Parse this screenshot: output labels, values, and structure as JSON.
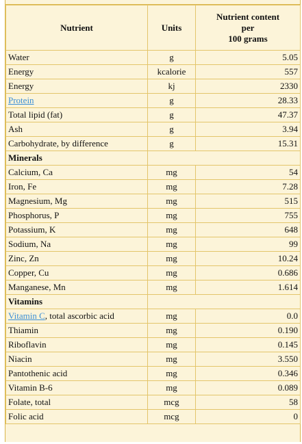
{
  "table": {
    "header": [
      "Nutrient",
      "Units",
      [
        "Nutrient content",
        "per",
        "100 grams"
      ]
    ],
    "rows": [
      {
        "nutrient": "Water",
        "units": "g",
        "value": "5.05"
      },
      {
        "nutrient": "Energy",
        "units": "kcalorie",
        "value": "557"
      },
      {
        "nutrient": "Energy",
        "units": "kj",
        "value": "2330"
      },
      {
        "link": "Protein",
        "units": "g",
        "value": "28.33"
      },
      {
        "nutrient": "Total lipid (fat)",
        "units": "g",
        "value": "47.37"
      },
      {
        "nutrient": "Ash",
        "units": "g",
        "value": "3.94"
      },
      {
        "nutrient": "Carbohydrate, by difference",
        "units": "g",
        "value": "15.31"
      },
      {
        "section": "Minerals"
      },
      {
        "nutrient": "Calcium, Ca",
        "units": "mg",
        "value": "54"
      },
      {
        "nutrient": "Iron, Fe",
        "units": "mg",
        "value": "7.28"
      },
      {
        "nutrient": "Magnesium, Mg",
        "units": "mg",
        "value": "515"
      },
      {
        "nutrient": "Phosphorus, P",
        "units": "mg",
        "value": "755"
      },
      {
        "nutrient": "Potassium, K",
        "units": "mg",
        "value": "648"
      },
      {
        "nutrient": "Sodium, Na",
        "units": "mg",
        "value": "99"
      },
      {
        "nutrient": "Zinc, Zn",
        "units": "mg",
        "value": "10.24"
      },
      {
        "nutrient": "Copper, Cu",
        "units": "mg",
        "value": "0.686"
      },
      {
        "nutrient": "Manganese, Mn",
        "units": "mg",
        "value": "1.614"
      },
      {
        "section": "Vitamins"
      },
      {
        "link": "Vitamin C",
        "nutrient": ", total ascorbic acid",
        "units": "mg",
        "value": "0.0"
      },
      {
        "nutrient": "Thiamin",
        "units": "mg",
        "value": "0.190"
      },
      {
        "nutrient": "Riboflavin",
        "units": "mg",
        "value": "0.145"
      },
      {
        "nutrient": "Niacin",
        "units": "mg",
        "value": "3.550"
      },
      {
        "nutrient": "Pantothenic acid",
        "units": "mg",
        "value": "0.346"
      },
      {
        "nutrient": "Vitamin B-6",
        "units": "mg",
        "value": "0.089"
      },
      {
        "nutrient": "Folate, total",
        "units": "mcg",
        "value": "58"
      },
      {
        "nutrient": "Folic acid",
        "units": "mcg",
        "value": "0"
      }
    ]
  }
}
